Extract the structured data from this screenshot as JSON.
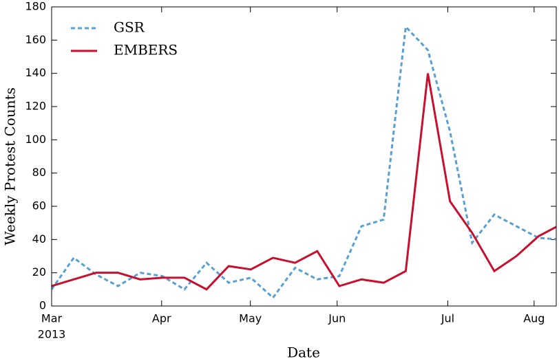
{
  "chart_data": {
    "type": "line",
    "x_label": "Date",
    "y_label": "Weekly Protest Counts",
    "x": [
      0,
      1,
      2,
      3,
      4,
      5,
      6,
      7,
      8,
      9,
      10,
      11,
      12,
      13,
      14,
      15,
      16,
      17,
      18,
      19,
      20,
      21,
      22,
      23
    ],
    "series": [
      {
        "name": "GSR",
        "color": "#56a0d3",
        "dashed": true,
        "values": [
          10,
          29,
          19,
          12,
          20,
          18,
          10,
          26,
          14,
          17,
          5,
          23,
          16,
          18,
          48,
          52,
          168,
          154,
          105,
          38,
          55,
          48,
          41,
          40
        ]
      },
      {
        "name": "EMBERS",
        "color": "#c8102e",
        "dashed": false,
        "values": [
          12,
          16,
          20,
          20,
          16,
          17,
          17,
          10,
          24,
          22,
          29,
          26,
          33,
          12,
          16,
          14,
          21,
          140,
          63,
          44,
          21,
          30,
          42,
          49
        ]
      }
    ],
    "xlim": [
      0,
      22.8
    ],
    "xticks": [
      {
        "value": 0,
        "label": "Mar"
      },
      {
        "value": 4.97,
        "label": "Apr"
      },
      {
        "value": 8.98,
        "label": "May"
      },
      {
        "value": 12.9,
        "label": "Jun"
      },
      {
        "value": 17.9,
        "label": "Jul"
      },
      {
        "value": 21.8,
        "label": "Aug"
      }
    ],
    "first_xtick_year": "2013",
    "ylim": [
      0,
      180
    ],
    "yticks": [
      0,
      20,
      40,
      60,
      80,
      100,
      120,
      140,
      160,
      180
    ],
    "legend": "upper left"
  }
}
